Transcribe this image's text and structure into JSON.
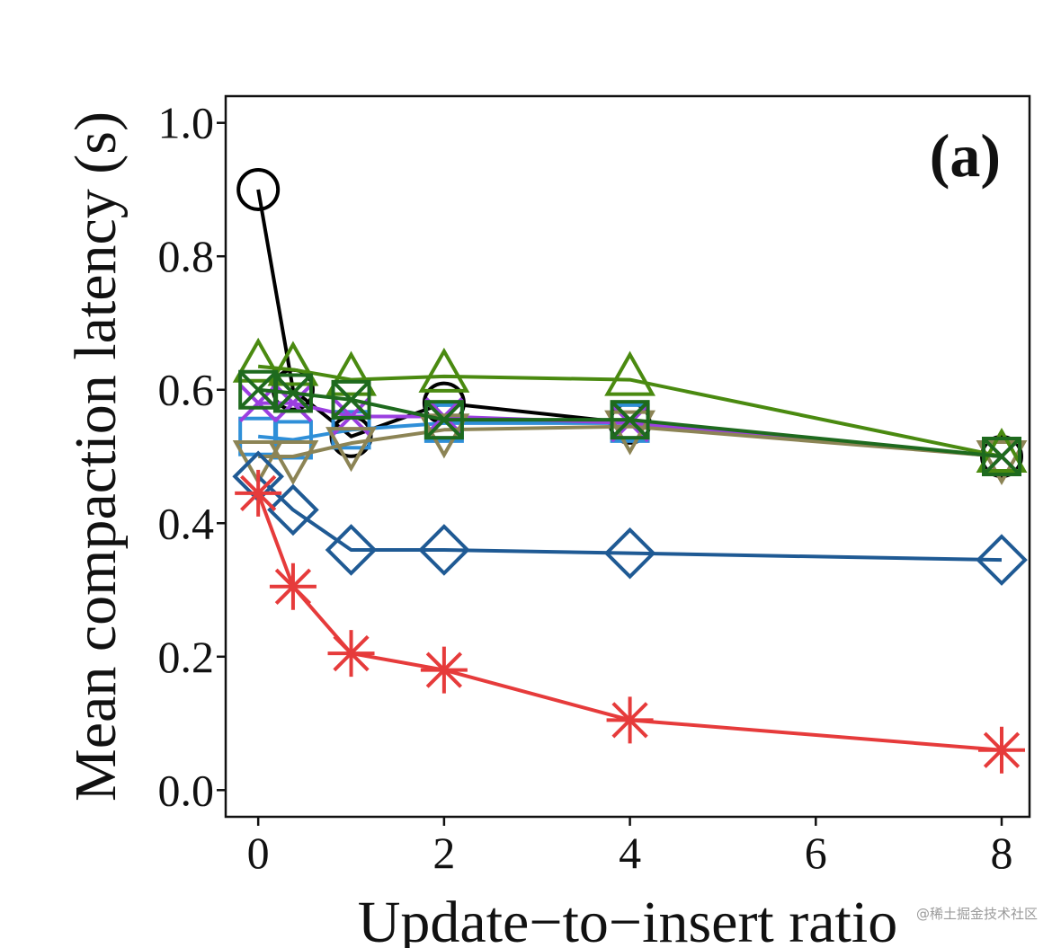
{
  "chart_data": {
    "type": "line",
    "panel_label": "(a)",
    "xlabel": "Update−to−insert ratio",
    "ylabel": "Mean compaction latency (s)",
    "xlim": [
      -0.35,
      8.3
    ],
    "ylim": [
      -0.04,
      1.04
    ],
    "xticks": [
      0,
      2,
      4,
      6,
      8
    ],
    "xtick_labels": [
      "0",
      "2",
      "4",
      "6",
      "8"
    ],
    "yticks": [
      0,
      0.2,
      0.4,
      0.6,
      0.8,
      1.0
    ],
    "ytick_labels": [
      "0.0",
      "0.2",
      "0.4",
      "0.6",
      "0.8",
      "1.0"
    ],
    "x": [
      0,
      0.375,
      1,
      2,
      4,
      8
    ],
    "series": [
      {
        "name": "circle",
        "marker": "circle",
        "color": "#000000",
        "values": [
          0.9,
          0.6,
          0.53,
          0.58,
          0.55,
          0.5
        ]
      },
      {
        "name": "square-blue",
        "marker": "square",
        "color": "#2f8fd8",
        "values": [
          0.53,
          0.525,
          0.54,
          0.55,
          0.55,
          0.5
        ]
      },
      {
        "name": "cross-purple",
        "marker": "x",
        "color": "#9b3fe0",
        "values": [
          0.58,
          0.58,
          0.56,
          0.56,
          0.55,
          0.5
        ]
      },
      {
        "name": "triangle-down-olive",
        "marker": "triangle-down",
        "color": "#8c8455",
        "values": [
          0.5,
          0.5,
          0.52,
          0.54,
          0.545,
          0.5
        ]
      },
      {
        "name": "diamond",
        "marker": "diamond",
        "color": "#1f5a94",
        "values": [
          0.47,
          0.42,
          0.36,
          0.36,
          0.355,
          0.345
        ]
      },
      {
        "name": "asterisk",
        "marker": "asterisk",
        "color": "#e63b3b",
        "values": [
          0.445,
          0.305,
          0.205,
          0.18,
          0.105,
          0.06
        ]
      },
      {
        "name": "triangle-up",
        "marker": "triangle-up",
        "color": "#4a8a10",
        "values": [
          0.635,
          0.63,
          0.615,
          0.62,
          0.615,
          0.5
        ]
      },
      {
        "name": "box-x-green",
        "marker": "box-x",
        "color": "#1e6a1e",
        "values": [
          0.6,
          0.595,
          0.585,
          0.555,
          0.555,
          0.5
        ]
      }
    ]
  },
  "watermark": "@稀土掘金技术社区"
}
